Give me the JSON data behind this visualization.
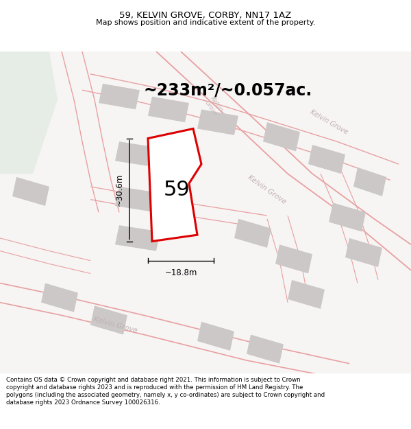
{
  "title": "59, KELVIN GROVE, CORBY, NN17 1AZ",
  "subtitle": "Map shows position and indicative extent of the property.",
  "area_text": "~233m²/~0.057ac.",
  "label_59": "59",
  "dim_width": "~18.8m",
  "dim_height": "~30.6m",
  "footer": "Contains OS data © Crown copyright and database right 2021. This information is subject to Crown copyright and database rights 2023 and is reproduced with the permission of HM Land Registry. The polygons (including the associated geometry, namely x, y co-ordinates) are subject to Crown copyright and database rights 2023 Ordnance Survey 100026316.",
  "map_bg": "#f7f4f4",
  "road_color": "#e8a0a0",
  "road_fill": "#f0e8e8",
  "building_color": "#ccc8c8",
  "green_color": "#e6ede6",
  "highlight_color": "#dd0000",
  "highlight_fill": "#ffffff",
  "title_fontsize": 9.5,
  "subtitle_fontsize": 8,
  "area_fontsize": 17,
  "label_fontsize": 22,
  "dim_fontsize": 8.5,
  "footer_fontsize": 6.2,
  "road_label_color": "#c0b0b0",
  "road_label_fontsize": 7.5
}
